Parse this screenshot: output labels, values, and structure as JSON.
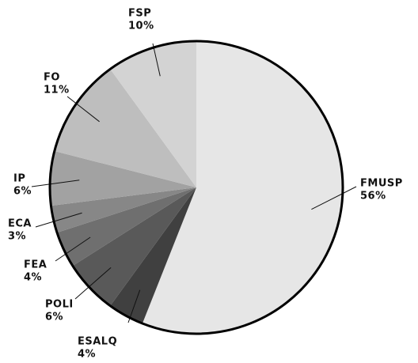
{
  "chart_data": {
    "type": "pie",
    "categories": [
      "FMUSP",
      "ESALQ",
      "POLI",
      "FEA",
      "ECA",
      "IP",
      "FO",
      "FSP"
    ],
    "values": [
      56,
      4,
      6,
      4,
      3,
      6,
      11,
      10
    ],
    "value_labels": [
      "56%",
      "4%",
      "6%",
      "4%",
      "3%",
      "6%",
      "11%",
      "10%"
    ],
    "colors": [
      "#e6e6e6",
      "#404040",
      "#595959",
      "#6f6f6f",
      "#878787",
      "#a2a2a2",
      "#bebebe",
      "#d3d3d3"
    ]
  }
}
